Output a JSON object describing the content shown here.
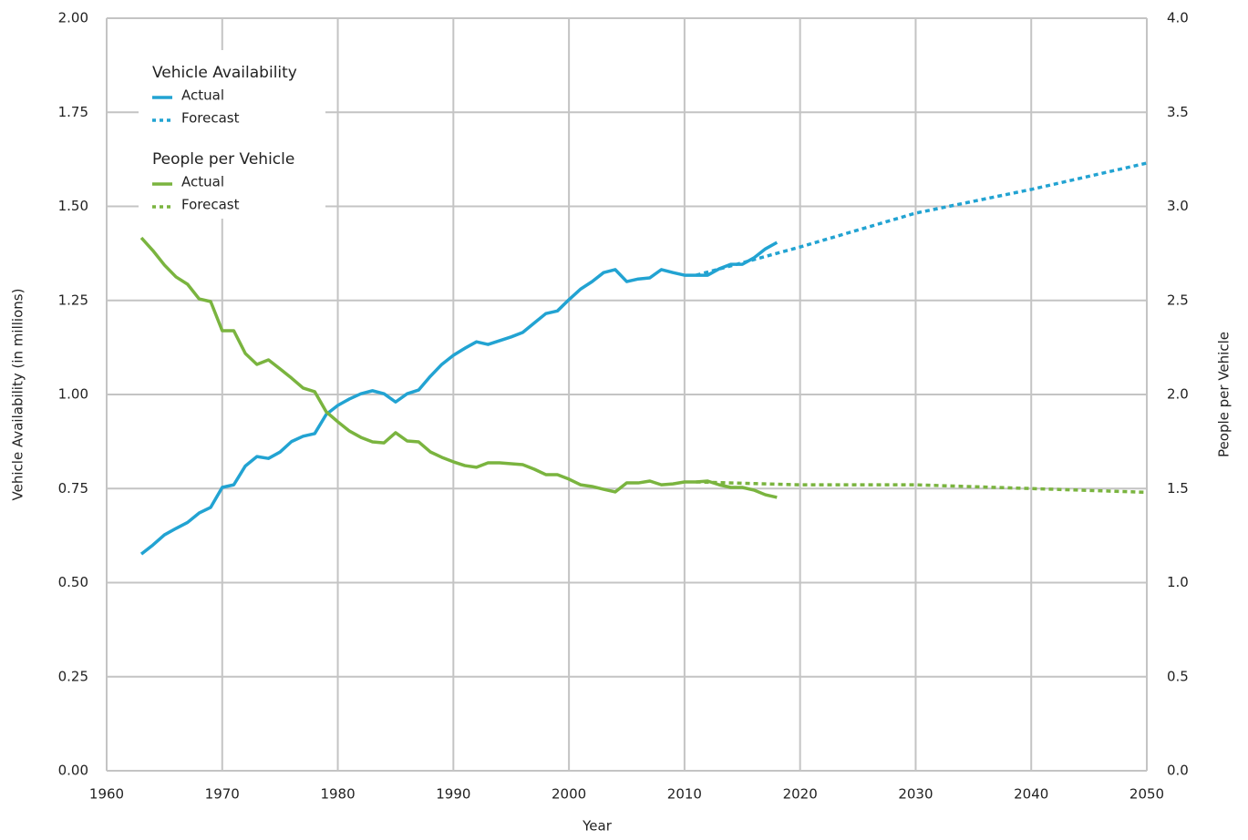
{
  "chart_data": {
    "type": "line",
    "x_label": "Year",
    "y_label": "Vehicle Availability (in millions)",
    "y2_label": "People per Vehicle",
    "xlim": [
      1960,
      2050
    ],
    "xticks": [
      1960,
      1970,
      1980,
      1990,
      2000,
      2010,
      2020,
      2030,
      2040,
      2050
    ],
    "ylim": [
      0,
      2
    ],
    "yticks": [
      {
        "value": 0,
        "label": "0.00"
      },
      {
        "value": 0.25,
        "label": "0.25"
      },
      {
        "value": 0.5,
        "label": "0.50"
      },
      {
        "value": 0.75,
        "label": "0.75"
      },
      {
        "value": 1,
        "label": "1.00"
      },
      {
        "value": 1.25,
        "label": "1.25"
      },
      {
        "value": 1.5,
        "label": "1.50"
      },
      {
        "value": 1.75,
        "label": "1.75"
      },
      {
        "value": 2,
        "label": "2.00"
      }
    ],
    "y2lim": [
      0,
      4
    ],
    "y2ticks": [
      {
        "value": 0,
        "label": "0.0"
      },
      {
        "value": 0.5,
        "label": "0.5"
      },
      {
        "value": 1,
        "label": "1.0"
      },
      {
        "value": 1.5,
        "label": "1.5"
      },
      {
        "value": 2,
        "label": "2.0"
      },
      {
        "value": 2.5,
        "label": "2.5"
      },
      {
        "value": 3,
        "label": "3.0"
      },
      {
        "value": 3.5,
        "label": "3.5"
      },
      {
        "value": 4,
        "label": "4.0"
      }
    ],
    "grid": true,
    "legend": "upper-left",
    "series": [
      {
        "name": "Actual",
        "group": "Vehicle Availability",
        "color": "#22a3d2",
        "dashed": false,
        "x": [
          1963,
          1964,
          1965,
          1966,
          1967,
          1968,
          1969,
          1970,
          1971,
          1972,
          1973,
          1974,
          1975,
          1976,
          1977,
          1978,
          1979,
          1980,
          1981,
          1982,
          1983,
          1984,
          1985,
          1986,
          1987,
          1988,
          1989,
          1990,
          1991,
          1992,
          1993,
          1994,
          1995,
          1996,
          1997,
          1998,
          1999,
          2000,
          2001,
          2002,
          2003,
          2004,
          2005,
          2006,
          2007,
          2008,
          2009,
          2010,
          2011,
          2012,
          2013,
          2014,
          2015,
          2016,
          2017,
          2018
        ],
        "values": [
          0.576,
          0.6,
          0.627,
          0.644,
          0.66,
          0.685,
          0.7,
          0.753,
          0.76,
          0.81,
          0.835,
          0.83,
          0.847,
          0.875,
          0.889,
          0.896,
          0.947,
          0.971,
          0.988,
          1.002,
          1.01,
          1.002,
          0.98,
          1.002,
          1.012,
          1.048,
          1.08,
          1.104,
          1.123,
          1.14,
          1.133,
          1.143,
          1.153,
          1.165,
          1.19,
          1.215,
          1.222,
          1.252,
          1.28,
          1.3,
          1.324,
          1.332,
          1.3,
          1.307,
          1.31,
          1.332,
          1.324,
          1.317,
          1.317,
          1.317,
          1.334,
          1.346,
          1.346,
          1.363,
          1.387,
          1.404
        ]
      },
      {
        "name": "Forecast",
        "group": "Vehicle Availability",
        "color": "#22a3d2",
        "dashed": true,
        "x": [
          2011,
          2015,
          2020,
          2030,
          2040,
          2050
        ],
        "values": [
          1.317,
          1.35,
          1.392,
          1.482,
          1.545,
          1.615
        ]
      },
      {
        "name": "Actual",
        "group": "People per Vehicle",
        "color": "#7ab43f",
        "dashed": false,
        "axis": "y2",
        "x": [
          1963,
          1964,
          1965,
          1966,
          1967,
          1968,
          1969,
          1970,
          1971,
          1972,
          1973,
          1974,
          1975,
          1976,
          1977,
          1978,
          1979,
          1980,
          1981,
          1982,
          1983,
          1984,
          1985,
          1986,
          1987,
          1988,
          1989,
          1990,
          1991,
          1992,
          1993,
          1994,
          1995,
          1996,
          1997,
          1998,
          1999,
          2000,
          2001,
          2002,
          2003,
          2004,
          2005,
          2006,
          2007,
          2008,
          2009,
          2010,
          2011,
          2012,
          2013,
          2014,
          2015,
          2016,
          2017,
          2018
        ],
        "values": [
          2.833,
          2.765,
          2.688,
          2.625,
          2.586,
          2.508,
          2.494,
          2.339,
          2.339,
          2.218,
          2.16,
          2.184,
          2.136,
          2.087,
          2.034,
          2.015,
          1.908,
          1.855,
          1.806,
          1.772,
          1.748,
          1.743,
          1.797,
          1.753,
          1.748,
          1.695,
          1.666,
          1.642,
          1.622,
          1.613,
          1.637,
          1.637,
          1.632,
          1.627,
          1.603,
          1.574,
          1.574,
          1.55,
          1.52,
          1.511,
          1.496,
          1.482,
          1.53,
          1.53,
          1.54,
          1.52,
          1.525,
          1.535,
          1.535,
          1.54,
          1.52,
          1.506,
          1.506,
          1.492,
          1.467,
          1.453
        ]
      },
      {
        "name": "Forecast",
        "group": "People per Vehicle",
        "color": "#7ab43f",
        "dashed": true,
        "axis": "y2",
        "x": [
          2011,
          2020,
          2030,
          2040,
          2050
        ],
        "values": [
          1.535,
          1.52,
          1.52,
          1.5,
          1.48
        ]
      }
    ]
  }
}
